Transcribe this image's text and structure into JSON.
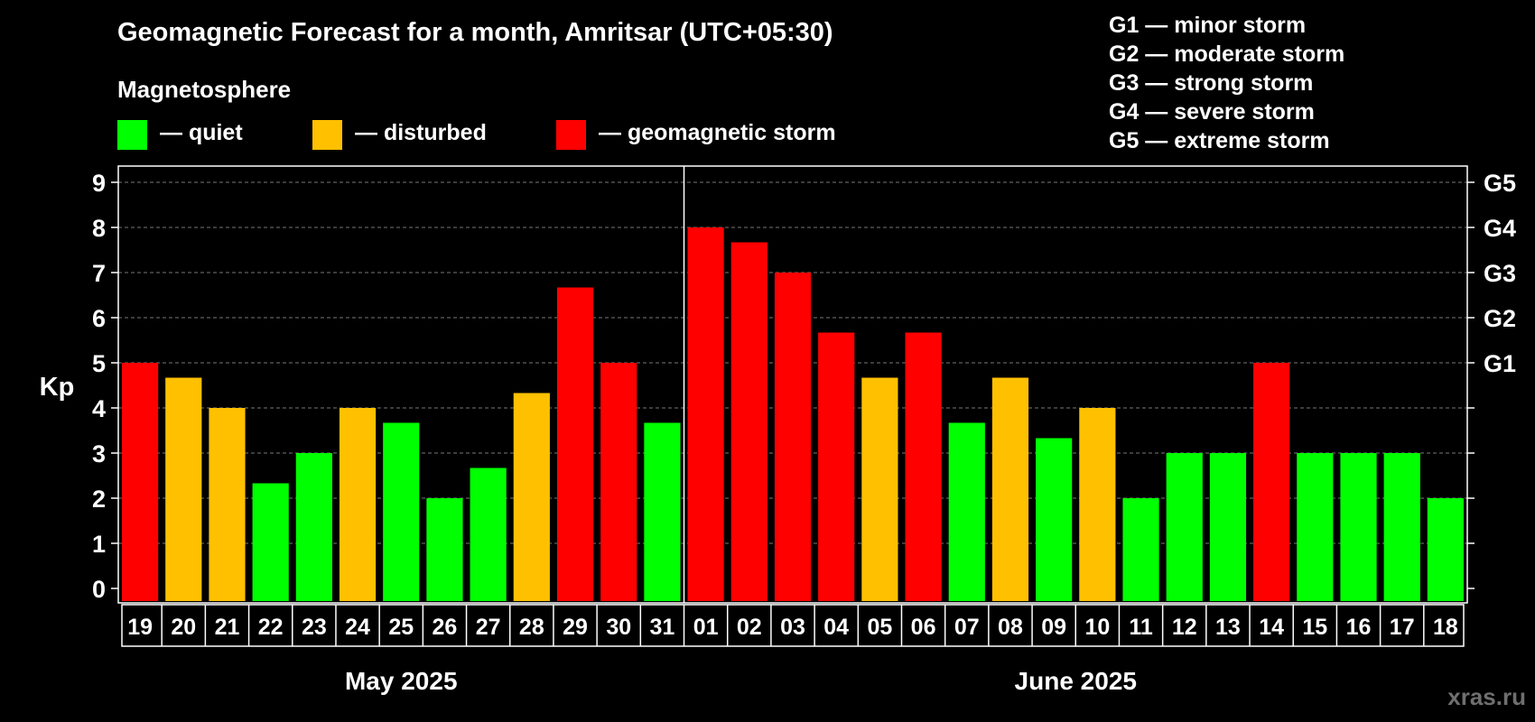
{
  "header": {
    "title": "Geomagnetic Forecast for a month, Amritsar (UTC+05:30)",
    "legend_heading": "Magnetosphere"
  },
  "legend": [
    {
      "label": "— quiet",
      "color": "#00ff00"
    },
    {
      "label": "— disturbed",
      "color": "#ffc000"
    },
    {
      "label": "— geomagnetic storm",
      "color": "#ff0000"
    }
  ],
  "storm_levels": [
    "G1 — minor storm",
    "G2 — moderate storm",
    "G3 — strong storm",
    "G4 — severe storm",
    "G5 — extreme storm"
  ],
  "chart_data": {
    "type": "bar",
    "ylabel": "Kp",
    "ylim": [
      0,
      9
    ],
    "y_ticks": [
      "0",
      "1",
      "2",
      "3",
      "4",
      "5",
      "6",
      "7",
      "8",
      "9"
    ],
    "right_axis_labels": [
      {
        "y": 5,
        "label": "G1"
      },
      {
        "y": 6,
        "label": "G2"
      },
      {
        "y": 7,
        "label": "G3"
      },
      {
        "y": 8,
        "label": "G4"
      },
      {
        "y": 9,
        "label": "G5"
      }
    ],
    "grid": "horizontal-dashed",
    "categories": [
      "19",
      "20",
      "21",
      "22",
      "23",
      "24",
      "25",
      "26",
      "27",
      "28",
      "29",
      "30",
      "31",
      "01",
      "02",
      "03",
      "04",
      "05",
      "06",
      "07",
      "08",
      "09",
      "10",
      "11",
      "12",
      "13",
      "14",
      "15",
      "16",
      "17",
      "18"
    ],
    "values": [
      5,
      4.67,
      4,
      2.33,
      3,
      4,
      3.67,
      2,
      2.67,
      4.33,
      6.67,
      5,
      3.67,
      8,
      7.67,
      7,
      5.67,
      4.67,
      5.67,
      3.67,
      4.67,
      3.33,
      4,
      2,
      3,
      3,
      5,
      3,
      3,
      3,
      2
    ],
    "status": [
      "storm",
      "disturbed",
      "disturbed",
      "quiet",
      "quiet",
      "disturbed",
      "quiet",
      "quiet",
      "quiet",
      "disturbed",
      "storm",
      "storm",
      "quiet",
      "storm",
      "storm",
      "storm",
      "storm",
      "disturbed",
      "storm",
      "quiet",
      "disturbed",
      "quiet",
      "disturbed",
      "quiet",
      "quiet",
      "quiet",
      "storm",
      "quiet",
      "quiet",
      "quiet",
      "quiet"
    ],
    "status_colors": {
      "quiet": "#00ff00",
      "disturbed": "#ffc000",
      "storm": "#ff0000"
    },
    "months": [
      {
        "label": "May 2025",
        "count": 13
      },
      {
        "label": "June 2025",
        "count": 18
      }
    ]
  },
  "watermark": "xras.ru"
}
